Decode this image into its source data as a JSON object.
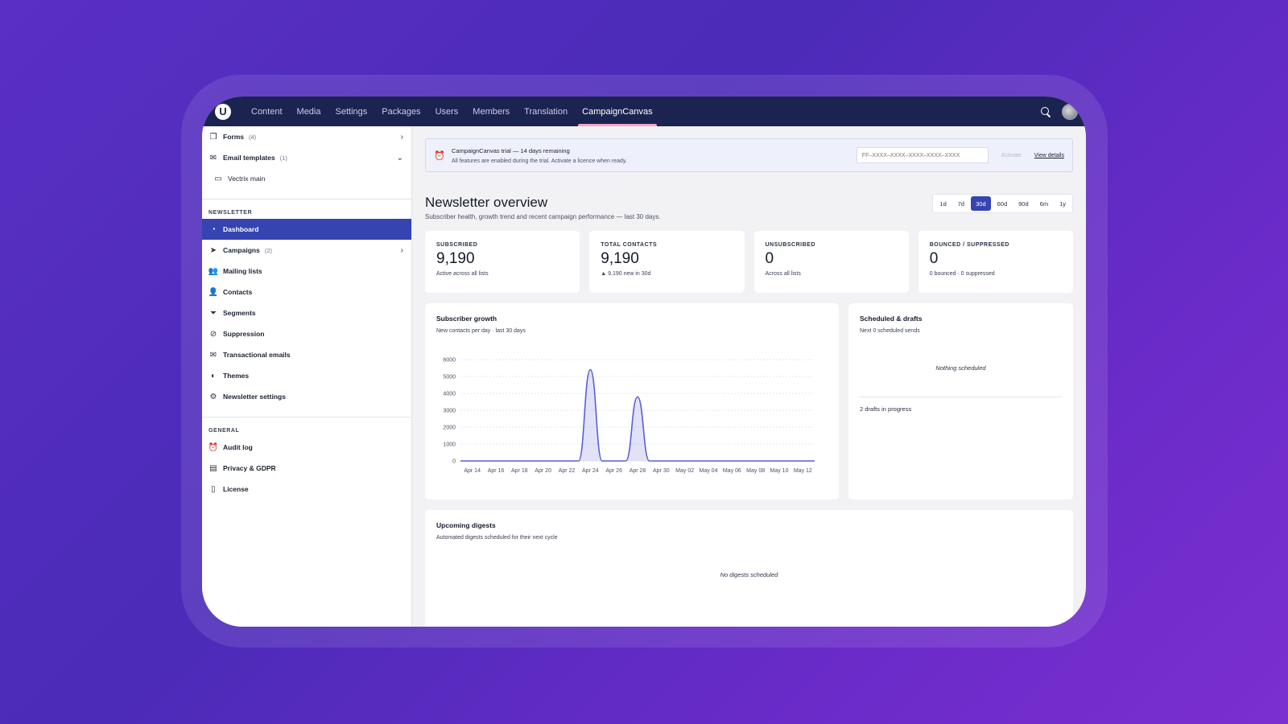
{
  "topbar": {
    "logo_letter": "U",
    "nav": [
      "Content",
      "Media",
      "Settings",
      "Packages",
      "Users",
      "Members",
      "Translation",
      "CampaignCanvas"
    ],
    "active_nav": "CampaignCanvas"
  },
  "sidebar": {
    "top_items": [
      {
        "label": "Forms",
        "count": "(4)",
        "icon": "forms-icon",
        "chevron": "›"
      },
      {
        "label": "Email templates",
        "count": "(1)",
        "icon": "envelope-icon",
        "chevron": "⌄"
      },
      {
        "label": "Vectrix main",
        "icon": "template-icon"
      }
    ],
    "newsletter_section": "NEWSLETTER",
    "newsletter_items": [
      {
        "label": "Dashboard",
        "icon": "gauge-icon"
      },
      {
        "label": "Campaigns",
        "count": "(2)",
        "icon": "send-icon",
        "chevron": "›"
      },
      {
        "label": "Mailing lists",
        "icon": "users-icon"
      },
      {
        "label": "Contacts",
        "icon": "user-icon"
      },
      {
        "label": "Segments",
        "icon": "filter-icon"
      },
      {
        "label": "Suppression",
        "icon": "block-icon"
      },
      {
        "label": "Transactional emails",
        "icon": "envelope-icon"
      },
      {
        "label": "Themes",
        "icon": "palette-icon"
      },
      {
        "label": "Newsletter settings",
        "icon": "gear-icon"
      }
    ],
    "general_section": "GENERAL",
    "general_items": [
      {
        "label": "Audit log",
        "icon": "clock-icon"
      },
      {
        "label": "Privacy & GDPR",
        "icon": "shield-icon"
      },
      {
        "label": "License",
        "icon": "document-icon"
      }
    ]
  },
  "trial": {
    "title": "CampaignCanvas trial — 14 days remaining",
    "subtitle": "All features are enabled during the trial. Activate a licence when ready.",
    "licence_placeholder": "FF–XXXX–XXXX–XXXX–XXXX–XXXX",
    "activate_label": "Activate",
    "details_label": "View details"
  },
  "overview": {
    "title": "Newsletter overview",
    "subtitle": "Subscriber health, growth trend and recent campaign performance — last 30 days.",
    "ranges": [
      "1d",
      "7d",
      "30d",
      "60d",
      "90d",
      "6m",
      "1y"
    ],
    "active_range": "30d"
  },
  "stats": [
    {
      "label": "SUBSCRIBED",
      "value": "9,190",
      "note": "Active across all lists"
    },
    {
      "label": "TOTAL CONTACTS",
      "value": "9,190",
      "note": "▲ 9,190 new in 30d"
    },
    {
      "label": "UNSUBSCRIBED",
      "value": "0",
      "note": "Across all lists"
    },
    {
      "label": "BOUNCED / SUPPRESSED",
      "value": "0",
      "note": "0 bounced · 0 suppressed"
    }
  ],
  "growth": {
    "title": "Subscriber growth",
    "subtitle": "New contacts per day · last 30 days"
  },
  "chart_data": {
    "type": "area",
    "x": [
      "Apr 13",
      "Apr 14",
      "Apr 15",
      "Apr 16",
      "Apr 17",
      "Apr 18",
      "Apr 19",
      "Apr 20",
      "Apr 21",
      "Apr 22",
      "Apr 23",
      "Apr 24",
      "Apr 25",
      "Apr 26",
      "Apr 27",
      "Apr 28",
      "Apr 29",
      "Apr 30",
      "May 01",
      "May 02",
      "May 03",
      "May 04",
      "May 05",
      "May 06",
      "May 07",
      "May 08",
      "May 09",
      "May 10",
      "May 11",
      "May 12",
      "May 13"
    ],
    "values": [
      0,
      0,
      0,
      0,
      0,
      0,
      0,
      0,
      0,
      0,
      0,
      5400,
      0,
      0,
      0,
      3790,
      0,
      0,
      0,
      0,
      0,
      0,
      0,
      0,
      0,
      0,
      0,
      0,
      0,
      0,
      0
    ],
    "x_tick_labels": [
      "Apr 14",
      "Apr 16",
      "Apr 18",
      "Apr 20",
      "Apr 22",
      "Apr 24",
      "Apr 26",
      "Apr 28",
      "Apr 30",
      "May 02",
      "May 04",
      "May 06",
      "May 08",
      "May 10",
      "May 12"
    ],
    "y_ticks": [
      0,
      1000,
      2000,
      3000,
      4000,
      5000,
      6000
    ],
    "ylim": [
      0,
      6000
    ],
    "grid": true,
    "color": "#5a5fd6"
  },
  "scheduled": {
    "title": "Scheduled & drafts",
    "subtitle": "Next 0 scheduled sends",
    "empty": "Nothing scheduled",
    "drafts": "2 drafts in progress"
  },
  "digests": {
    "title": "Upcoming digests",
    "subtitle": "Automated digests scheduled for their next cycle",
    "empty": "No digests scheduled"
  },
  "colors": {
    "topbar": "#1b2451",
    "accent": "#3544b1",
    "active_tab_underline": "#f3a6c3"
  }
}
